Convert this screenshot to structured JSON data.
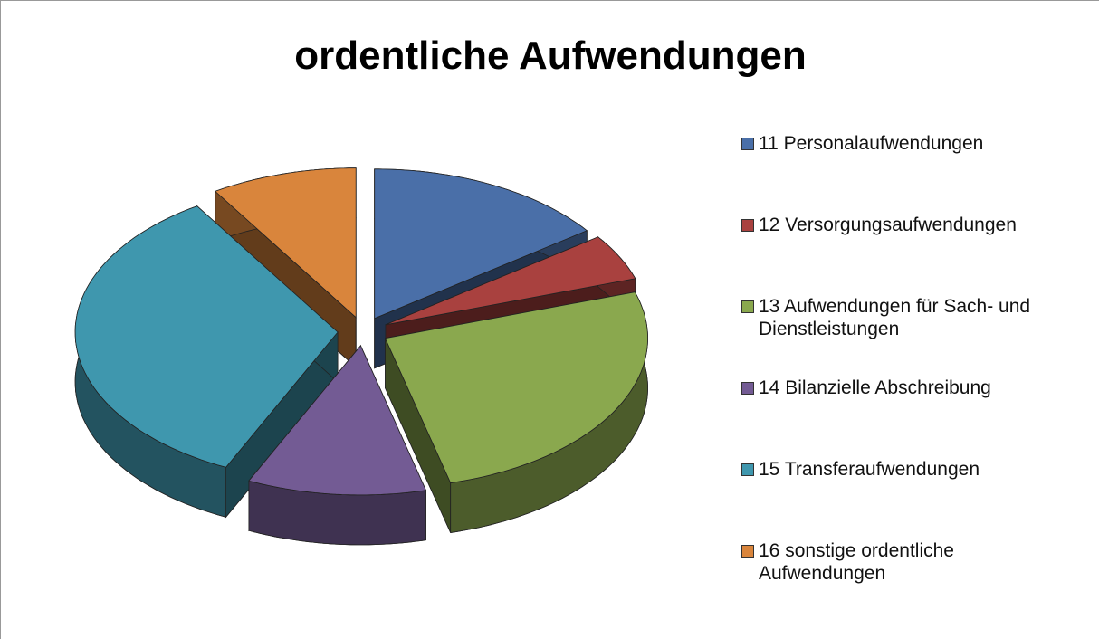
{
  "chart_data": {
    "type": "pie3d",
    "title": "ordentliche Aufwendungen",
    "categories": [
      "11 Personalaufwendungen",
      "12 Versorgungsaufwendungen",
      "13 Aufwendungen für Sach- und Dienstleistungen",
      "14 Bilanzielle Abschreibung",
      "15 Transferaufwendungen",
      "16 sonstige ordentliche Aufwendungen"
    ],
    "values": [
      15,
      5,
      26,
      11,
      34,
      9
    ],
    "colors": [
      "#4a6fa8",
      "#a9413f",
      "#8aa84e",
      "#735b94",
      "#3f97ae",
      "#d9853c"
    ],
    "legend": "right"
  }
}
